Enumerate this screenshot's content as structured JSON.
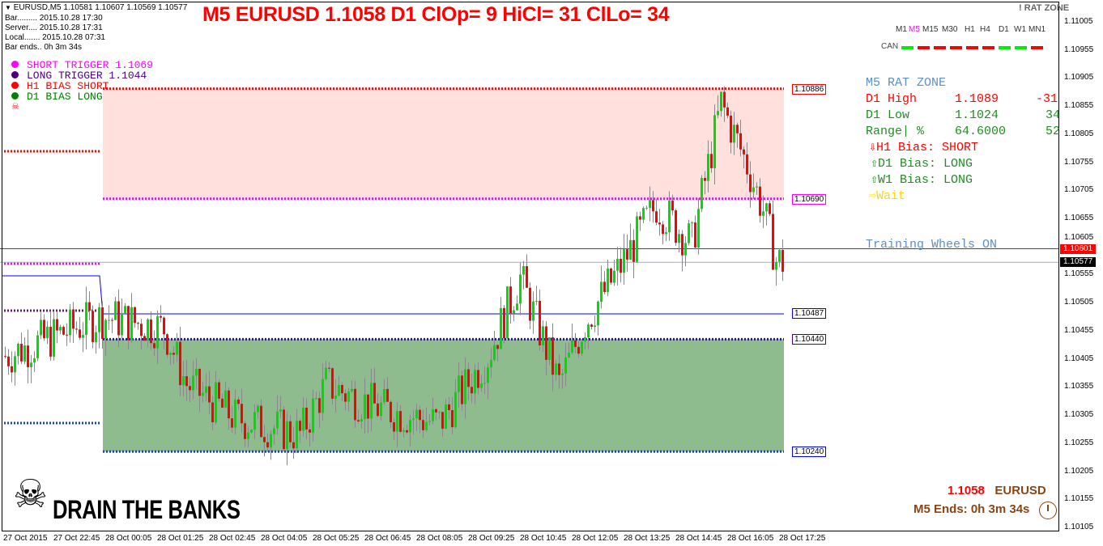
{
  "header": {
    "symbol_line": "EURUSD,M5  1.10581 1.10607 1.10569 1.10577",
    "bar": "Bar......... 2015.10.28 17:30",
    "server": "Server.... 2015.10.28 17:31",
    "local": "Local....... 2015.10.28 07:31",
    "bar_ends": "Bar ends.. 0h 3m 34s"
  },
  "title": "M5 EURUSD 1.1058 D1 ClOp= 9 HiCl= 31 ClLo= 34",
  "legend": [
    {
      "label": "SHORT TRIGGER 1.1069",
      "color": "#ff00ff"
    },
    {
      "label": "LONG TRIGGER  1.1044",
      "color": "#4b0082"
    },
    {
      "label": "H1 BIAS SHORT",
      "color": "#ff0000"
    },
    {
      "label": "D1 BIAS LONG",
      "color": "#008000"
    }
  ],
  "rat_zone_label": "! RAT ZONE",
  "timeframes": [
    {
      "label": "M1",
      "active": false
    },
    {
      "label": "M5",
      "active": true
    },
    {
      "label": "M15",
      "active": false
    },
    {
      "label": "M30",
      "active": false
    },
    {
      "label": "H1",
      "active": false
    },
    {
      "label": "H4",
      "active": false
    },
    {
      "label": "D1",
      "active": false
    },
    {
      "label": "W1",
      "active": false
    },
    {
      "label": "MN1",
      "active": false
    }
  ],
  "can": {
    "label": "CAN",
    "colors": [
      "#00ee00",
      "#ff0000",
      "#ff0000",
      "#ff0000",
      "#ff0000",
      "#ff0000",
      "#00ee00",
      "#00ee00",
      "#ff0000"
    ]
  },
  "panel": {
    "title": "M5 RAT ZONE",
    "d1_high": {
      "label": "D1 High",
      "value": "1.1089",
      "diff": "-31"
    },
    "d1_low": {
      "label": "D1 Low",
      "value": "1.1024",
      "diff": "34"
    },
    "range": {
      "label": "Range| %",
      "value": "64.6000",
      "diff": "52"
    },
    "h1_bias": "⇩H1 Bias: SHORT",
    "d1_bias": "⇧D1 Bias: LONG",
    "w1_bias": "⇧W1 Bias: LONG",
    "signal": "⇨Wait",
    "training": "Training Wheels ON"
  },
  "bottom": {
    "price": "1.1058",
    "symbol": "EURUSD",
    "ends": "M5 Ends: 0h 3m 34s"
  },
  "logo": "DRAIN THE BANKS",
  "levels": {
    "d1_high": "1.10886",
    "short_trigger": "1.10690",
    "current_red": "1.10601",
    "bid": "1.10577",
    "blue": "1.10487",
    "long_trigger": "1.10440",
    "d1_low": "1.10240"
  },
  "chart_data": {
    "type": "candlestick",
    "symbol": "EURUSD",
    "timeframe": "M5",
    "y_ticks": [
      "1.11005",
      "1.10955",
      "1.10905",
      "1.10855",
      "1.10805",
      "1.10755",
      "1.10705",
      "1.10655",
      "1.10605",
      "1.10555",
      "1.10505",
      "1.10455",
      "1.10405",
      "1.10355",
      "1.10305",
      "1.10255",
      "1.10205",
      "1.10155",
      "1.10105"
    ],
    "ylim": [
      1.10085,
      1.11045
    ],
    "x_ticks": [
      "27 Oct 2015",
      "27 Oct 22:45",
      "28 Oct 00:05",
      "28 Oct 01:25",
      "28 Oct 02:45",
      "28 Oct 04:05",
      "28 Oct 05:25",
      "28 Oct 06:45",
      "28 Oct 08:05",
      "28 Oct 09:25",
      "28 Oct 10:45",
      "28 Oct 12:05",
      "28 Oct 13:25",
      "28 Oct 14:45",
      "28 Oct 16:05",
      "28 Oct 17:25"
    ],
    "price_path": [
      [
        0,
        1.1041
      ],
      [
        30,
        1.1048
      ],
      [
        49,
        1.1046
      ],
      [
        56,
        1.1036
      ],
      [
        71,
        1.103
      ],
      [
        91,
        1.1027
      ],
      [
        99,
        1.1036
      ],
      [
        114,
        1.1032
      ],
      [
        134,
        1.1029
      ],
      [
        149,
        1.1041
      ],
      [
        159,
        1.1055
      ],
      [
        171,
        1.1036
      ],
      [
        179,
        1.1047
      ],
      [
        189,
        1.1056
      ],
      [
        201,
        1.1068
      ],
      [
        212,
        1.1061
      ],
      [
        221,
        1.1086
      ],
      [
        229,
        1.1075
      ],
      [
        234,
        1.1067
      ],
      [
        238,
        1.1058
      ],
      [
        240,
        1.10577
      ]
    ],
    "bull_color": "#00dd00",
    "bear_color": "#ff0000"
  }
}
